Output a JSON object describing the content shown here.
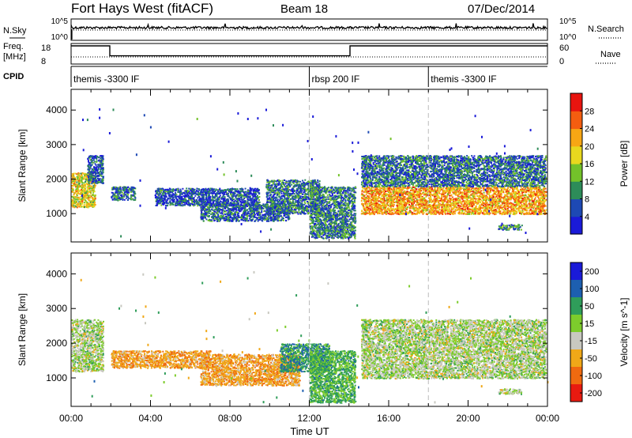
{
  "header": {
    "station": "Fort Hays West (fitACF)",
    "beam": "Beam 18",
    "date": "07/Dec/2014"
  },
  "status_panels": {
    "nsky_label": "N.Sky",
    "nsearch_label": "N.Search",
    "nsky_ticks": [
      "10^5",
      "10^0"
    ],
    "nsearch_ticks": [
      "10^5",
      "10^0"
    ],
    "freq_label_top": "Freq.",
    "freq_label_unit": "[MHz]",
    "freq_ticks": [
      "18",
      "8"
    ],
    "nave_label": "Nave",
    "nave_ticks": [
      "60",
      "0"
    ],
    "freq_series": [
      {
        "t0": 0.0,
        "t1": 1.95,
        "f": 18
      },
      {
        "t0": 1.95,
        "t1": 14.05,
        "f": 11
      },
      {
        "t0": 14.05,
        "t1": 24.0,
        "f": 18
      }
    ],
    "cpid_label": "CPID",
    "cpid_segments": [
      {
        "start": 0.0,
        "label": "themis -3300 IF"
      },
      {
        "start": 12.0,
        "label": "rbsp 200 IF"
      },
      {
        "start": 18.0,
        "label": "themis -3300 IF"
      }
    ]
  },
  "chart_data": [
    {
      "type": "heatmap",
      "title": "Power",
      "ylabel": "Slant Range [km]",
      "xlabel": "",
      "ylim": [
        180,
        4600
      ],
      "xlim": [
        0,
        24
      ],
      "y_ticks": [
        1000,
        2000,
        3000,
        4000
      ],
      "colorbar": {
        "label": "Power [dB]",
        "ticks": [
          "28",
          "24",
          "20",
          "16",
          "12",
          "8",
          "4"
        ],
        "range": [
          0,
          32
        ],
        "colors": [
          "#1a1ad8",
          "#1d49b4",
          "#2d8c59",
          "#73c22a",
          "#e8d81e",
          "#f7a614",
          "#f45d10",
          "#e8140f"
        ]
      },
      "echo_regions": [
        {
          "t0": 0.0,
          "t1": 1.2,
          "r0": 1200,
          "r1": 2200,
          "level": 18
        },
        {
          "t0": 0.8,
          "t1": 1.6,
          "r0": 1900,
          "r1": 2700,
          "level": 6
        },
        {
          "t0": 2.0,
          "t1": 3.2,
          "r0": 1400,
          "r1": 1800,
          "level": 8
        },
        {
          "t0": 4.2,
          "t1": 9.5,
          "r0": 1250,
          "r1": 1750,
          "level": 6
        },
        {
          "t0": 6.5,
          "t1": 11.0,
          "r0": 800,
          "r1": 1300,
          "level": 7
        },
        {
          "t0": 9.8,
          "t1": 12.5,
          "r0": 1000,
          "r1": 2000,
          "level": 8
        },
        {
          "t0": 12.0,
          "t1": 14.3,
          "r0": 300,
          "r1": 1800,
          "level": 9
        },
        {
          "t0": 14.6,
          "t1": 23.9,
          "r0": 1000,
          "r1": 1800,
          "level": 22
        },
        {
          "t0": 14.6,
          "t1": 23.9,
          "r0": 1800,
          "r1": 2700,
          "level": 8
        },
        {
          "t0": 21.5,
          "t1": 22.7,
          "r0": 550,
          "r1": 700,
          "level": 10
        }
      ]
    },
    {
      "type": "heatmap",
      "title": "Velocity",
      "ylabel": "Slant Range [km]",
      "xlabel": "Time UT",
      "ylim": [
        180,
        4600
      ],
      "xlim": [
        0,
        24
      ],
      "y_ticks": [
        1000,
        2000,
        3000,
        4000
      ],
      "x_ticks": [
        "00:00",
        "04:00",
        "08:00",
        "12:00",
        "16:00",
        "20:00",
        "00:00"
      ],
      "colorbar": {
        "label": "Velocity [m s^-1]",
        "ticks": [
          "200",
          "100",
          "50",
          "15",
          "-15",
          "-50",
          "-100",
          "-200"
        ],
        "range": [
          -250,
          250
        ],
        "colors": [
          "#1a1ad8",
          "#1d5fb0",
          "#2f9d5a",
          "#7dcc2c",
          "#c8c8c0",
          "#f0a818",
          "#f06a10",
          "#e81a10"
        ]
      },
      "echo_regions": [
        {
          "t0": 0.0,
          "t1": 1.6,
          "r0": 1200,
          "r1": 2700,
          "level": 0
        },
        {
          "t0": 2.0,
          "t1": 7.0,
          "r0": 1300,
          "r1": 1800,
          "level": -60
        },
        {
          "t0": 6.5,
          "t1": 11.5,
          "r0": 800,
          "r1": 1700,
          "level": -60
        },
        {
          "t0": 10.5,
          "t1": 13.0,
          "r0": 1200,
          "r1": 2000,
          "level": 60
        },
        {
          "t0": 12.0,
          "t1": 14.3,
          "r0": 300,
          "r1": 1800,
          "level": 40
        },
        {
          "t0": 14.6,
          "t1": 23.9,
          "r0": 1000,
          "r1": 1900,
          "level": 0
        },
        {
          "t0": 14.6,
          "t1": 23.9,
          "r0": 1900,
          "r1": 2700,
          "level": 0
        },
        {
          "t0": 21.5,
          "t1": 22.7,
          "r0": 550,
          "r1": 700,
          "level": 0
        }
      ]
    }
  ]
}
